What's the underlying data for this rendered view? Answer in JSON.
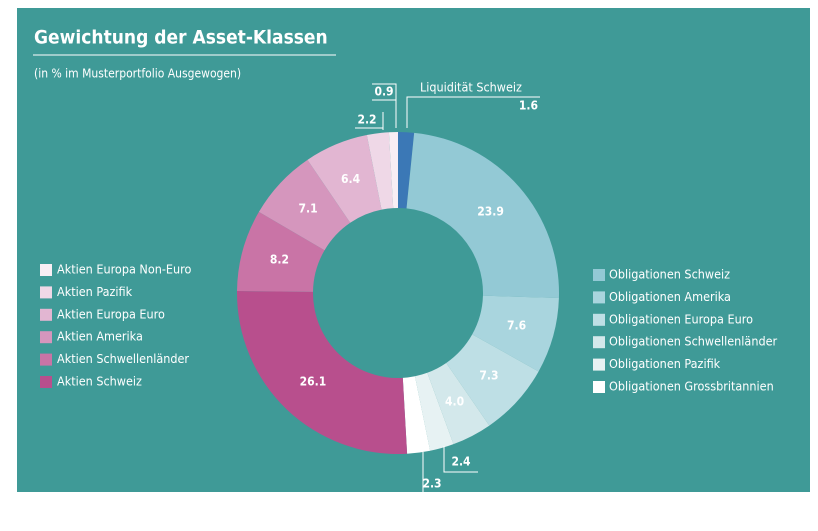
{
  "chart_data": {
    "type": "donut",
    "title": "Gewichtung der Asset-Klassen",
    "subtitle": "(in % im Musterportfolio Ausgewogen)",
    "categories": [
      "Liquidität Schweiz",
      "Obligationen Schweiz",
      "Obligationen Amerika",
      "Obligationen Europa Euro",
      "Obligationen Schwellenländer",
      "Obligationen Pazifik",
      "Obligationen Grossbritannien",
      "Aktien Schweiz",
      "Aktien Schwellenländer",
      "Aktien Amerika",
      "Aktien Europa Euro",
      "Aktien Pazifik",
      "Aktien Europa Non-Euro"
    ],
    "values": [
      1.6,
      23.9,
      7.6,
      7.3,
      4.0,
      2.4,
      2.3,
      26.1,
      8.2,
      7.1,
      6.4,
      2.2,
      0.9
    ],
    "value_labels": [
      "1.6",
      "23.9",
      "7.6",
      "7.3",
      "4.0",
      "2.4",
      "2.3",
      "26.1",
      "8.2",
      "7.1",
      "6.4",
      "2.2",
      "0.9"
    ],
    "colors": [
      "#3b78b6",
      "#93c9d5",
      "#a9d5de",
      "#bedfe5",
      "#d3e8eb",
      "#e7f2f3",
      "#ffffff",
      "#b84f8d",
      "#c974a6",
      "#d596bd",
      "#e2b6d2",
      "#efd8e7",
      "#f8eef4"
    ]
  }
}
